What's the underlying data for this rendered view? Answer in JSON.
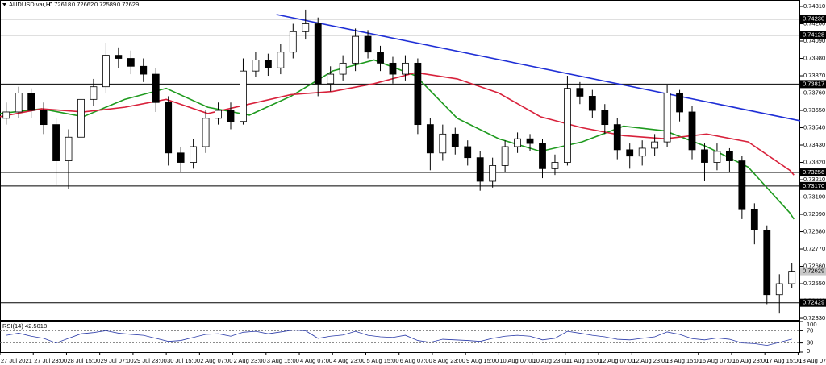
{
  "chart_data": {
    "type": "candlestick",
    "title": "AUDUSD.var,H1",
    "title_values": [
      0.72618,
      0.72662,
      0.72589,
      0.72629
    ],
    "x": [
      3,
      9,
      15,
      21,
      27,
      33,
      39,
      45,
      51,
      57,
      63,
      69,
      75,
      81,
      87,
      93,
      99,
      105,
      111,
      117,
      123,
      129,
      135,
      141,
      147,
      153,
      159,
      165,
      171,
      177,
      183,
      189,
      195,
      201,
      207,
      213,
      219,
      225,
      231,
      237,
      243,
      249,
      255,
      261,
      267,
      273,
      279,
      285,
      291,
      297,
      303,
      309,
      315,
      321,
      327,
      333,
      339,
      345,
      351,
      357,
      363,
      369,
      375,
      381
    ],
    "open": [
      0.736,
      0.7364,
      0.7376,
      0.7365,
      0.7356,
      0.7333,
      0.7348,
      0.7372,
      0.738,
      0.74,
      0.7398,
      0.7393,
      0.7388,
      0.737,
      0.7338,
      0.7332,
      0.7342,
      0.736,
      0.7365,
      0.7358,
      0.739,
      0.7397,
      0.7392,
      0.7402,
      0.7415,
      0.742,
      0.7382,
      0.7388,
      0.7395,
      0.7412,
      0.7402,
      0.7395,
      0.7388,
      0.7395,
      0.7356,
      0.7338,
      0.735,
      0.7342,
      0.7335,
      0.732,
      0.733,
      0.7342,
      0.7347,
      0.7344,
      0.7328,
      0.7332,
      0.7379,
      0.7374,
      0.7365,
      0.7356,
      0.734,
      0.7336,
      0.7341,
      0.7345,
      0.7376,
      0.7364,
      0.734,
      0.7332,
      0.7339,
      0.7333,
      0.7302,
      0.7289,
      0.7248,
      0.7255
    ],
    "high": [
      0.737,
      0.738,
      0.7379,
      0.737,
      0.736,
      0.7353,
      0.7376,
      0.7385,
      0.7408,
      0.7405,
      0.7403,
      0.7398,
      0.7392,
      0.7374,
      0.7342,
      0.7347,
      0.7365,
      0.737,
      0.737,
      0.7398,
      0.7402,
      0.7401,
      0.7407,
      0.742,
      0.7429,
      0.7424,
      0.7393,
      0.74,
      0.7417,
      0.7416,
      0.7406,
      0.7399,
      0.74,
      0.7398,
      0.736,
      0.7356,
      0.7354,
      0.7346,
      0.7339,
      0.7335,
      0.7346,
      0.7351,
      0.735,
      0.7347,
      0.7337,
      0.7387,
      0.7383,
      0.7378,
      0.7369,
      0.736,
      0.7344,
      0.7346,
      0.735,
      0.7381,
      0.7378,
      0.7368,
      0.7344,
      0.7344,
      0.7341,
      0.7336,
      0.7306,
      0.7292,
      0.7261,
      0.7268
    ],
    "low": [
      0.7356,
      0.736,
      0.736,
      0.735,
      0.7318,
      0.7315,
      0.7344,
      0.7368,
      0.7376,
      0.7392,
      0.7388,
      0.7383,
      0.7364,
      0.733,
      0.7326,
      0.7328,
      0.7338,
      0.7356,
      0.7353,
      0.7356,
      0.7386,
      0.7387,
      0.7388,
      0.7398,
      0.741,
      0.7374,
      0.7377,
      0.7384,
      0.739,
      0.7398,
      0.739,
      0.7382,
      0.7384,
      0.735,
      0.7327,
      0.7333,
      0.7337,
      0.733,
      0.7314,
      0.7316,
      0.7326,
      0.7338,
      0.7339,
      0.7322,
      0.7324,
      0.733,
      0.7369,
      0.736,
      0.735,
      0.7334,
      0.7328,
      0.733,
      0.7336,
      0.7342,
      0.7358,
      0.7334,
      0.732,
      0.7327,
      0.7326,
      0.7296,
      0.728,
      0.7242,
      0.7236,
      0.7252
    ],
    "close": [
      0.7364,
      0.7376,
      0.7365,
      0.7356,
      0.7333,
      0.7348,
      0.7372,
      0.738,
      0.74,
      0.7398,
      0.7393,
      0.7388,
      0.737,
      0.7338,
      0.7332,
      0.7342,
      0.736,
      0.7365,
      0.7358,
      0.739,
      0.7397,
      0.7392,
      0.7402,
      0.7415,
      0.742,
      0.7382,
      0.7388,
      0.7395,
      0.7412,
      0.7402,
      0.7395,
      0.7388,
      0.7395,
      0.7356,
      0.7338,
      0.735,
      0.7342,
      0.7335,
      0.732,
      0.733,
      0.7342,
      0.7347,
      0.7344,
      0.7328,
      0.7332,
      0.7379,
      0.7374,
      0.7365,
      0.7356,
      0.734,
      0.7336,
      0.7341,
      0.7345,
      0.7376,
      0.7364,
      0.734,
      0.7332,
      0.7339,
      0.7333,
      0.7302,
      0.7289,
      0.7248,
      0.7255,
      0.72629
    ],
    "up_color": "#ffffff",
    "down_color": "#000000",
    "xlim": [
      0,
      385
    ],
    "ylim": [
      0.7232,
      0.74351
    ],
    "grid": false,
    "yticks": [
      {
        "value": 0.7431,
        "label": "0.74310"
      },
      {
        "value": 0.742,
        "label": "0.74200"
      },
      {
        "value": 0.7409,
        "label": "0.74090"
      },
      {
        "value": 0.7398,
        "label": "0.73980"
      },
      {
        "value": 0.7387,
        "label": "0.73870"
      },
      {
        "value": 0.7376,
        "label": "0.73760"
      },
      {
        "value": 0.7365,
        "label": "0.73650"
      },
      {
        "value": 0.7354,
        "label": "0.73540"
      },
      {
        "value": 0.7343,
        "label": "0.73430"
      },
      {
        "value": 0.7332,
        "label": "0.73320"
      },
      {
        "value": 0.7321,
        "label": "0.73210"
      },
      {
        "value": 0.731,
        "label": "0.73100"
      },
      {
        "value": 0.7299,
        "label": "0.72990"
      },
      {
        "value": 0.7288,
        "label": "0.72880"
      },
      {
        "value": 0.7277,
        "label": "0.72770"
      },
      {
        "value": 0.7266,
        "label": "0.72660"
      },
      {
        "value": 0.7255,
        "label": "0.72550"
      },
      {
        "value": 0.7244,
        "label": "0.72440"
      },
      {
        "value": 0.7233,
        "label": "0.72330"
      }
    ],
    "xticks": [
      {
        "value": 0,
        "label": "27 Jul 2021"
      },
      {
        "value": 16,
        "label": "27 Jul 23:00"
      },
      {
        "value": 32,
        "label": "28 Jul 15:00"
      },
      {
        "value": 48,
        "label": "29 Jul 07:00"
      },
      {
        "value": 64,
        "label": "29 Jul 23:00"
      },
      {
        "value": 80,
        "label": "30 Jul 15:00"
      },
      {
        "value": 96,
        "label": "2 Aug 07:00"
      },
      {
        "value": 112,
        "label": "2 Aug 23:00"
      },
      {
        "value": 128,
        "label": "3 Aug 15:00"
      },
      {
        "value": 144,
        "label": "4 Aug 07:00"
      },
      {
        "value": 160,
        "label": "4 Aug 23:00"
      },
      {
        "value": 176,
        "label": "5 Aug 15:00"
      },
      {
        "value": 192,
        "label": "6 Aug 07:00"
      },
      {
        "value": 208,
        "label": "8 Aug 23:00"
      },
      {
        "value": 224,
        "label": "9 Aug 15:00"
      },
      {
        "value": 240,
        "label": "10 Aug 07:00"
      },
      {
        "value": 256,
        "label": "10 Aug 23:00"
      },
      {
        "value": 272,
        "label": "11 Aug 15:00"
      },
      {
        "value": 288,
        "label": "12 Aug 07:00"
      },
      {
        "value": 304,
        "label": "12 Aug 23:00"
      },
      {
        "value": 320,
        "label": "13 Aug 15:00"
      },
      {
        "value": 336,
        "label": "16 Aug 07:00"
      },
      {
        "value": 352,
        "label": "16 Aug 23:00"
      },
      {
        "value": 368,
        "label": "17 Aug 15:00"
      },
      {
        "value": 384,
        "label": "18 Aug 07:00"
      }
    ],
    "levels": [
      {
        "value": 0.7423,
        "label": "0.74230"
      },
      {
        "value": 0.74128,
        "label": "0.74128"
      },
      {
        "value": 0.73817,
        "label": "0.73817"
      },
      {
        "value": 0.73256,
        "label": "0.73256"
      },
      {
        "value": 0.7317,
        "label": "0.73170"
      },
      {
        "value": 0.72429,
        "label": "0.72429"
      }
    ],
    "level_color": "#000000",
    "current_price": 0.72629,
    "moving_averages": [
      {
        "color": "#1e9a1e",
        "x": [
          0,
          20,
          40,
          60,
          80,
          100,
          120,
          140,
          160,
          180,
          200,
          220,
          240,
          260,
          280,
          300,
          320,
          340,
          360,
          380,
          382
        ],
        "values": [
          0.7363,
          0.7366,
          0.7361,
          0.7372,
          0.7379,
          0.7367,
          0.7362,
          0.7374,
          0.739,
          0.7397,
          0.7387,
          0.736,
          0.7347,
          0.7339,
          0.7345,
          0.7355,
          0.7352,
          0.7342,
          0.7329,
          0.73,
          0.7296
        ]
      },
      {
        "color": "#d8213b",
        "x": [
          0,
          20,
          40,
          60,
          80,
          100,
          120,
          140,
          160,
          180,
          200,
          220,
          240,
          260,
          280,
          300,
          320,
          340,
          360,
          380,
          382
        ],
        "values": [
          0.7361,
          0.7366,
          0.7364,
          0.7367,
          0.7372,
          0.7363,
          0.7369,
          0.7375,
          0.7377,
          0.7382,
          0.7389,
          0.7385,
          0.7376,
          0.7361,
          0.7354,
          0.7349,
          0.7347,
          0.735,
          0.7345,
          0.7327,
          0.7324
        ]
      }
    ],
    "trendline": {
      "color": "#1f2fd6",
      "x": [
        133,
        385
      ],
      "values": [
        0.74259,
        0.73584
      ]
    },
    "rsi": {
      "label": "RSI(14)",
      "color": "#2a3aa8",
      "ylim": [
        0,
        100
      ],
      "yticks": [
        100,
        70,
        30,
        0
      ],
      "values": [
        55,
        62,
        52,
        45,
        30,
        45,
        60,
        64,
        70,
        62,
        58,
        55,
        45,
        35,
        38,
        48,
        58,
        60,
        52,
        65,
        68,
        60,
        66,
        72,
        70,
        45,
        52,
        56,
        68,
        55,
        50,
        48,
        55,
        38,
        32,
        42,
        40,
        38,
        35,
        45,
        52,
        55,
        52,
        40,
        45,
        68,
        62,
        55,
        50,
        42,
        40,
        45,
        50,
        66,
        58,
        44,
        40,
        46,
        42,
        30,
        28,
        22,
        32,
        42.5018
      ]
    }
  }
}
